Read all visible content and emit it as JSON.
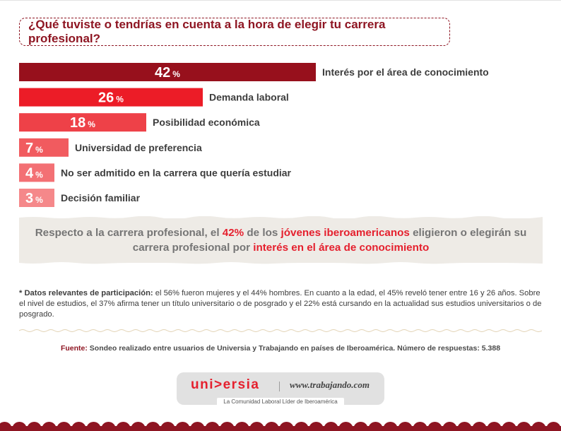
{
  "question": "¿Qué tuviste o tendrías en cuenta a la hora de elegir tu carrera profesional?",
  "chart_data": {
    "type": "bar",
    "orientation": "horizontal",
    "categories": [
      "Interés por el área de conocimiento",
      "Demanda laboral",
      "Posibilidad económica",
      "Universidad de preferencia",
      "No ser admitido en la carrera que quería estudiar",
      "Decisión familiar"
    ],
    "values": [
      42,
      26,
      18,
      7,
      4,
      3
    ],
    "value_suffix": "%",
    "colors": [
      "#97101c",
      "#ec1c27",
      "#ee4148",
      "#f15b5f",
      "#f37074",
      "#f5888a"
    ],
    "xlim": [
      0,
      42
    ],
    "grid": false,
    "legend": "none"
  },
  "callout": {
    "part1": "Respecto a la carrera profesional, el ",
    "highlight1": "42%",
    "part2": " de los ",
    "highlight2": "jóvenes iberoamericanos",
    "part3": " eligieron o elegirán su carrera profesional por ",
    "highlight3": "interés en el área de conocimiento"
  },
  "notes": {
    "lead": "* Datos relevantes de participación:",
    "text": " el 56% fueron mujeres y el 44% hombres. En cuanto a la edad, el 45% reveló tener entre 16 y 26 años. Sobre el nivel de estudios, el 37% afirma tener un título universitario o de posgrado y el 22% está cursando en la actualidad sus estudios universitarios o de posgrado."
  },
  "source": {
    "lead": "Fuente:",
    "text": " Sondeo realizado entre usuarios de Universia y Trabajando en países de Iberoamérica. Número de respuestas: 5.388"
  },
  "footer": {
    "logo_universia": "uni>ersia",
    "logo_trabajando": "www.trabajando.com",
    "tagline": "La Comunidad Laboral Líder de Iberoamérica"
  },
  "colors": {
    "brand_dark": "#8e1522",
    "accent_red": "#e5202e",
    "callout_bg": "#eeebe6",
    "footer_pill": "#e1e1e1"
  }
}
